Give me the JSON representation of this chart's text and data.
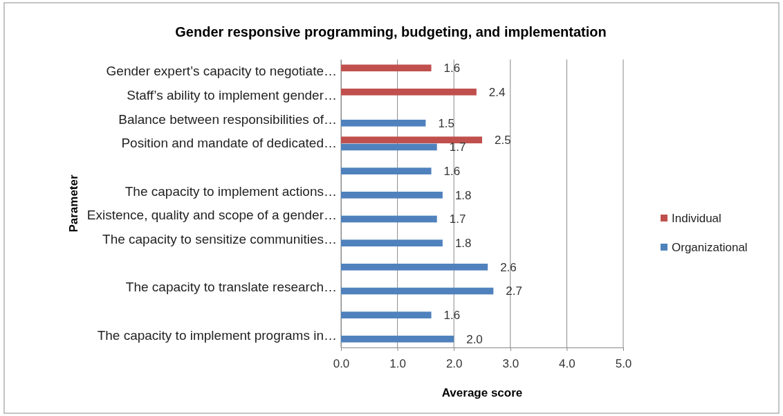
{
  "chart_data": {
    "type": "bar",
    "orientation": "horizontal",
    "title": "Gender responsive programming, budgeting, and implementation",
    "xlabel": "Average score",
    "ylabel": "Parameter",
    "categories": [
      "Gender expert’s capacity to negotiate…",
      "Staff’s ability to implement gender…",
      "Balance between responsibilities of…",
      "Position and mandate of dedicated…",
      null,
      "The capacity to implement actions…",
      "Existence, quality and scope of a gender…",
      "The capacity to sensitize communities…",
      null,
      "The capacity to translate research…",
      null,
      "The capacity to implement programs in…"
    ],
    "series": [
      {
        "name": "Individual",
        "color": "#c0504d",
        "values": [
          1.6,
          2.4,
          null,
          2.5,
          null,
          null,
          null,
          null,
          null,
          null,
          null,
          null
        ],
        "value_labels": [
          "1.6",
          "2.4",
          null,
          "2.5",
          null,
          null,
          null,
          null,
          null,
          null,
          null,
          null
        ]
      },
      {
        "name": "Organizational",
        "color": "#4f81bd",
        "values": [
          null,
          null,
          1.5,
          1.7,
          1.6,
          1.8,
          1.7,
          1.8,
          2.6,
          2.7,
          1.6,
          2.0
        ],
        "value_labels": [
          null,
          null,
          "1.5",
          "1.7",
          "1.6",
          "1.8",
          "1.7",
          "1.8",
          "2.6",
          "2.7",
          "1.6",
          "2.0"
        ]
      }
    ],
    "xlim": [
      0,
      5
    ],
    "xticks": [
      {
        "value": 0,
        "label": "0.0"
      },
      {
        "value": 1,
        "label": "1.0"
      },
      {
        "value": 2,
        "label": "2.0"
      },
      {
        "value": 3,
        "label": "3.0"
      },
      {
        "value": 4,
        "label": "4.0"
      },
      {
        "value": 5,
        "label": "5.0"
      }
    ],
    "grid": "x",
    "legend": "right"
  }
}
